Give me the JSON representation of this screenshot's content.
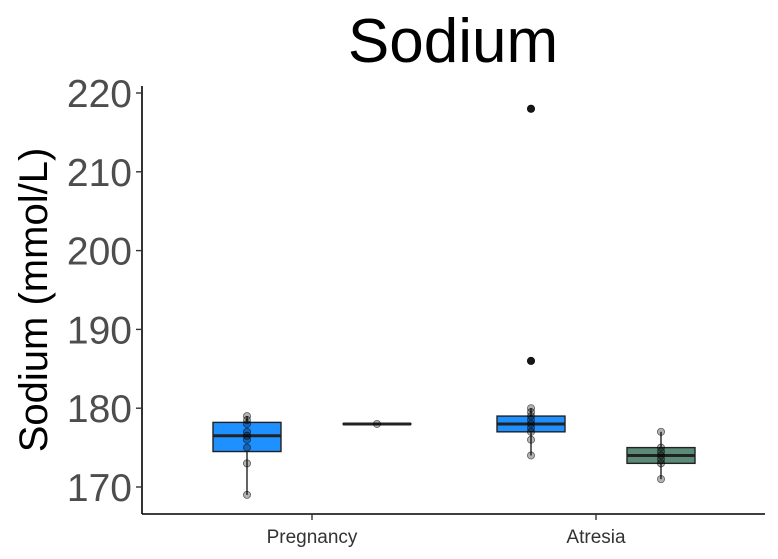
{
  "chart_data": {
    "type": "box",
    "title": "Sodium",
    "xlabel": "",
    "ylabel": "Sodium (mmol/L)",
    "ylim": [
      166,
      222
    ],
    "yticks": [
      170,
      180,
      190,
      200,
      210,
      220
    ],
    "categories": [
      "Pregnancy",
      "Atresia"
    ],
    "grid": false,
    "legend": "none",
    "groups": [
      {
        "category": "Pregnancy",
        "boxes": [
          {
            "color": "#1e90ff",
            "min": 169,
            "q1": 174.5,
            "median": 176.5,
            "q3": 178.2,
            "max": 179,
            "outliers": [],
            "points": [
              169,
              173,
              175,
              176,
              176.5,
              177,
              178,
              178.5,
              179
            ]
          },
          {
            "color": "#1e90ff",
            "min": 178,
            "q1": 178,
            "median": 178,
            "q3": 178,
            "max": 178,
            "outliers": [],
            "points": [
              178
            ]
          }
        ]
      },
      {
        "category": "Atresia",
        "boxes": [
          {
            "color": "#1e90ff",
            "min": 174,
            "q1": 177,
            "median": 178,
            "q3": 179,
            "max": 180,
            "outliers": [
              186,
              218
            ],
            "points": [
              174,
              176,
              177,
              177.5,
              178,
              178.5,
              179,
              179.5,
              180,
              186,
              218
            ]
          },
          {
            "color": "#5c8a78",
            "min": 171,
            "q1": 173,
            "median": 174,
            "q3": 175,
            "max": 177,
            "outliers": [],
            "points": [
              171,
              173,
              173.5,
              174,
              174.5,
              175,
              177
            ]
          }
        ]
      }
    ]
  }
}
